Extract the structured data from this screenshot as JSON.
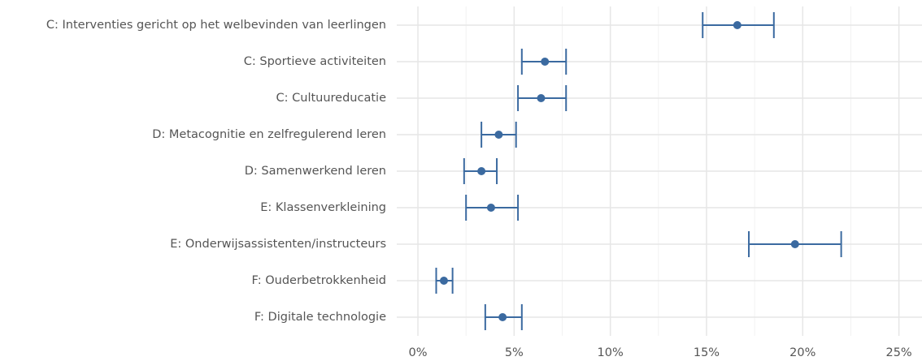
{
  "chart_data": {
    "type": "dot_errorbar",
    "categories": [
      "C: Interventies gericht op het welbevinden van leerlingen",
      "C: Sportieve activiteiten",
      "C: Cultuureducatie",
      "D: Metacognitie en zelfregulerend leren",
      "D: Samenwerkend leren",
      "E: Klassenverkleining",
      "E: Onderwijsassistenten/instructeurs",
      "F: Ouderbetrokkenheid",
      "F: Digitale technologie"
    ],
    "values": [
      16.6,
      6.6,
      6.4,
      4.2,
      3.3,
      3.8,
      19.6,
      1.35,
      4.4
    ],
    "lower": [
      14.8,
      5.4,
      5.2,
      3.3,
      2.4,
      2.5,
      17.2,
      0.95,
      3.5
    ],
    "upper": [
      18.5,
      7.7,
      7.7,
      5.1,
      4.1,
      5.2,
      22.0,
      1.8,
      5.4
    ],
    "color": "#3b6aa0",
    "xlim": [
      -1.1,
      26.2
    ],
    "xticks": [
      {
        "value": 0,
        "label": "0%"
      },
      {
        "value": 5,
        "label": "5%"
      },
      {
        "value": 10,
        "label": "10%"
      },
      {
        "value": 15,
        "label": "15%"
      },
      {
        "value": 20,
        "label": "20%"
      },
      {
        "value": 25,
        "label": "25%"
      }
    ],
    "xminorticks": [
      2.5,
      7.5,
      12.5,
      17.5,
      22.5
    ],
    "grid": true
  }
}
